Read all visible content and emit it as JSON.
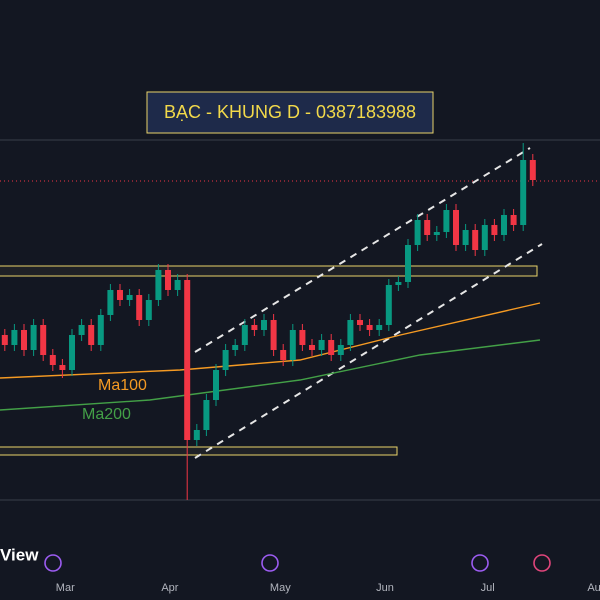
{
  "chart_data": {
    "type": "candlestick",
    "title": "BẠC - KHUNG D - 0387183988",
    "brand": "View",
    "x": [
      0,
      1,
      2,
      3,
      4,
      5,
      6,
      7,
      8,
      9,
      10,
      11,
      12,
      13,
      14,
      15,
      16,
      17,
      18,
      19,
      20,
      21,
      22,
      23,
      24,
      25,
      26,
      27,
      28,
      29,
      30,
      31,
      32,
      33,
      34,
      35,
      36,
      37,
      38,
      39,
      40,
      41,
      42,
      43,
      44,
      45,
      46,
      47,
      48,
      49,
      50,
      51,
      52,
      53,
      54,
      55
    ],
    "open": [
      265,
      255,
      270,
      250,
      275,
      245,
      235,
      230,
      265,
      275,
      255,
      285,
      310,
      300,
      305,
      280,
      300,
      330,
      310,
      320,
      160,
      170,
      200,
      230,
      250,
      255,
      275,
      270,
      280,
      250,
      240,
      270,
      255,
      250,
      260,
      245,
      255,
      280,
      275,
      270,
      275,
      315,
      318,
      355,
      380,
      365,
      368,
      390,
      355,
      370,
      350,
      375,
      365,
      385,
      375,
      440
    ],
    "high": [
      271,
      276,
      276,
      281,
      281,
      251,
      241,
      271,
      281,
      281,
      291,
      316,
      316,
      311,
      311,
      306,
      336,
      336,
      326,
      326,
      176,
      206,
      236,
      256,
      261,
      281,
      281,
      286,
      286,
      256,
      276,
      276,
      261,
      266,
      266,
      261,
      286,
      286,
      281,
      281,
      321,
      324,
      361,
      386,
      386,
      374,
      396,
      396,
      376,
      376,
      381,
      381,
      391,
      391,
      457,
      446
    ],
    "low": [
      249,
      249,
      244,
      244,
      239,
      229,
      222,
      224,
      259,
      249,
      249,
      279,
      294,
      294,
      274,
      274,
      294,
      304,
      304,
      100,
      154,
      164,
      194,
      224,
      244,
      249,
      264,
      264,
      244,
      234,
      234,
      249,
      244,
      244,
      239,
      239,
      249,
      269,
      264,
      264,
      269,
      309,
      312,
      349,
      359,
      359,
      362,
      349,
      349,
      344,
      344,
      359,
      359,
      369,
      369,
      414
    ],
    "close": [
      255,
      270,
      250,
      275,
      245,
      235,
      230,
      265,
      275,
      255,
      285,
      310,
      300,
      305,
      280,
      300,
      330,
      310,
      320,
      160,
      170,
      200,
      230,
      250,
      255,
      275,
      270,
      280,
      250,
      240,
      270,
      255,
      250,
      260,
      245,
      255,
      280,
      275,
      270,
      275,
      315,
      318,
      355,
      380,
      365,
      368,
      390,
      355,
      370,
      350,
      375,
      365,
      385,
      375,
      440,
      420
    ],
    "up_color": "#089981",
    "down_color": "#f23645",
    "series": [
      {
        "name": "Ma100",
        "color": "#f59a23",
        "x": [
          -0.5,
          18.25,
          30.75,
          41.2,
          55.75
        ],
        "values": [
          222,
          230,
          240,
          265,
          297
        ]
      },
      {
        "name": "Ma200",
        "color": "#43a047",
        "x": [
          -0.5,
          15.1,
          30.75,
          43.25,
          55.75
        ],
        "values": [
          190,
          200,
          220,
          245,
          260
        ]
      }
    ],
    "xlim": [
      -0.5,
      62
    ],
    "ylim": [
      0,
      600
    ],
    "xticks": [
      {
        "value": 6.3,
        "label": "Mar"
      },
      {
        "value": 17.2,
        "label": "Apr"
      },
      {
        "value": 28.7,
        "label": "May"
      },
      {
        "value": 39.6,
        "label": "Jun"
      },
      {
        "value": 50.3,
        "label": "Jul"
      },
      {
        "value": 61.7,
        "label": "Aug"
      }
    ]
  }
}
